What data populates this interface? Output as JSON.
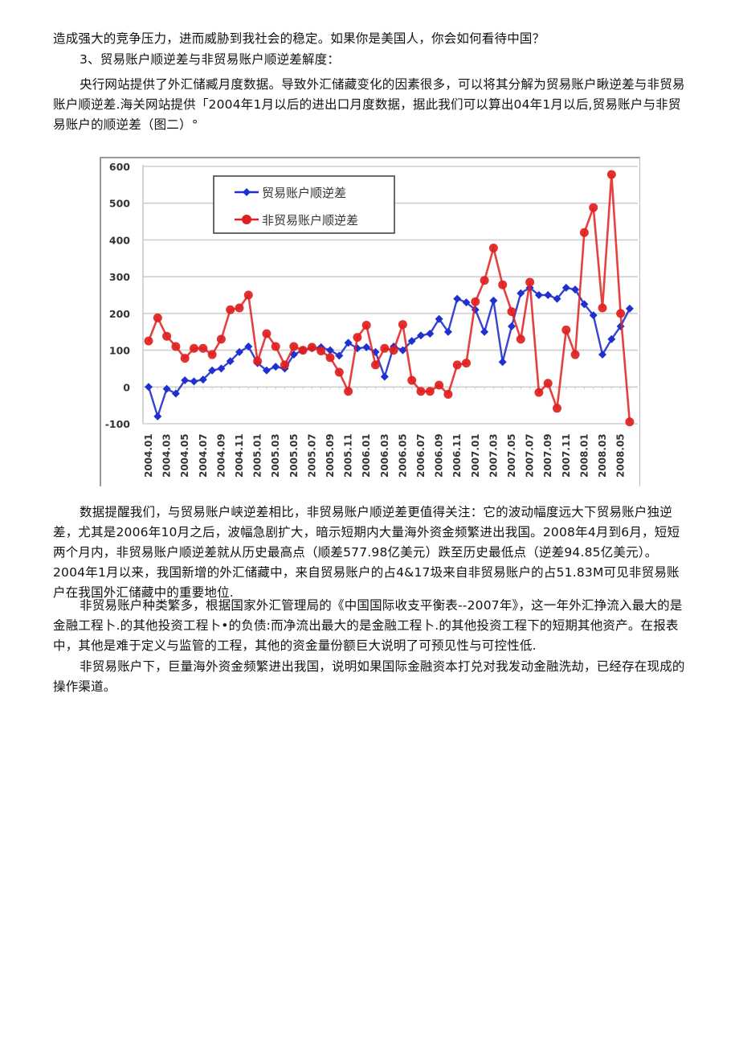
{
  "document": {
    "paragraphs": [
      "造成强大的竞争压力，进而威胁到我社会的稳定。如果你是美国人，你会如何看待中国？",
      "3、贸易账户顺逆差与非贸易账户顺逆差解度：",
      "央行网站提供了外汇储臧月度数据。导致外汇储藏变化的因素很多，可以将其分解为贸易账户瞅逆差与非贸易账户顺逆差.海关网站提供「2004年1月以后的进出口月度数据，据此我们可以算出04年1月以后,贸易账户与非贸易账户的顺逆差（图二）°",
      "数据提醒我们，与贸易账户峡逆差相比，非贸易账户顺逆差更值得关注：它的波动幅度远大下贸易账户独逆差，尤其是2006年10月之后，波幅急剧扩大，暗示短期内大量海外资金频繁进出我国。2008年4月到6月，短短两个月内，非贸易账户顺逆差就从历史最高点（顺差577.98亿美元）跌至历史最低点（逆差94.85亿美元）。2004年1月以来，我国新增的外汇储藏中，来自贸易账户的占4&17圾来自非贸易账户的占51.83M可见非贸易账户在我国外汇储藏中的重要地位.",
      "非贸易账户种类繁多，根据国家外汇管理局的《中国国际收支平衡表--2007年》，这一年外汇挣流入最大的是金融工程卜.的其他投资工程卜•的负债:而净流出最大的是金融工程卜.的其他投资工程下的短期其他资产。在报表中，其他是难于定义与监管的工程，其他的资金量份额巨大说明了可预见性与可控性低.",
      "非贸易账户下，巨量海外资金频繁进出我国，说明如果国际金融资本打兑对我发动金融洗劫，已经存在现成的操作渠道。"
    ]
  },
  "chart_data": {
    "type": "line",
    "title": "",
    "xlabel": "",
    "ylabel": "",
    "ylim": [
      -100,
      600
    ],
    "yticks": [
      600,
      500,
      400,
      300,
      200,
      100,
      0,
      -100
    ],
    "grid": true,
    "legend_position": "upper-left-inside",
    "x": [
      "2004.01",
      "2004.02",
      "2004.03",
      "2004.04",
      "2004.05",
      "2004.06",
      "2004.07",
      "2004.08",
      "2004.09",
      "2004.10",
      "2004.11",
      "2004.12",
      "2005.01",
      "2005.02",
      "2005.03",
      "2005.04",
      "2005.05",
      "2005.06",
      "2005.07",
      "2005.08",
      "2005.09",
      "2005.10",
      "2005.11",
      "2005.12",
      "2006.01",
      "2006.02",
      "2006.03",
      "2006.04",
      "2006.05",
      "2006.06",
      "2006.07",
      "2006.08",
      "2006.09",
      "2006.10",
      "2006.11",
      "2006.12",
      "2007.01",
      "2007.02",
      "2007.03",
      "2007.04",
      "2007.05",
      "2007.06",
      "2007.07",
      "2007.08",
      "2007.09",
      "2007.10",
      "2007.11",
      "2007.12",
      "2008.01",
      "2008.02",
      "2008.03",
      "2008.04",
      "2008.05",
      "2008.06"
    ],
    "xtick_labels": [
      "2004.01",
      "2004.03",
      "2004.05",
      "2004.07",
      "2004.09",
      "2004.11",
      "2005.01",
      "2005.03",
      "2005.05",
      "2005.07",
      "2005.09",
      "2005.11",
      "2006.01",
      "2006.03",
      "2006.05",
      "2006.07",
      "2006.09",
      "2006.11",
      "2007.01",
      "2007.03",
      "2007.05",
      "2007.07",
      "2007.09",
      "2007.11",
      "2008.01",
      "2008.03",
      "2008.05"
    ],
    "series": [
      {
        "name": "贸易账户顺逆差",
        "color": "#1f2fd0",
        "marker": "diamond",
        "values": [
          0,
          -80,
          -5,
          -18,
          18,
          15,
          20,
          45,
          50,
          70,
          95,
          110,
          65,
          45,
          55,
          50,
          88,
          100,
          105,
          108,
          100,
          85,
          120,
          105,
          108,
          95,
          28,
          110,
          100,
          125,
          140,
          145,
          185,
          150,
          240,
          230,
          210,
          150,
          235,
          68,
          165,
          255,
          270,
          250,
          250,
          240,
          270,
          265,
          225,
          195,
          88,
          130,
          165,
          213
        ]
      },
      {
        "name": "非贸易账户顺逆差",
        "color": "#e02020",
        "marker": "circle",
        "values": [
          125,
          188,
          138,
          110,
          78,
          105,
          105,
          88,
          130,
          210,
          215,
          250,
          70,
          145,
          110,
          60,
          110,
          100,
          108,
          98,
          80,
          40,
          -12,
          135,
          168,
          60,
          105,
          100,
          170,
          18,
          -12,
          -12,
          5,
          -20,
          60,
          65,
          232,
          290,
          378,
          278,
          205,
          130,
          285,
          -15,
          10,
          -58,
          155,
          88,
          420,
          488,
          215,
          578,
          200,
          -95
        ]
      }
    ]
  }
}
